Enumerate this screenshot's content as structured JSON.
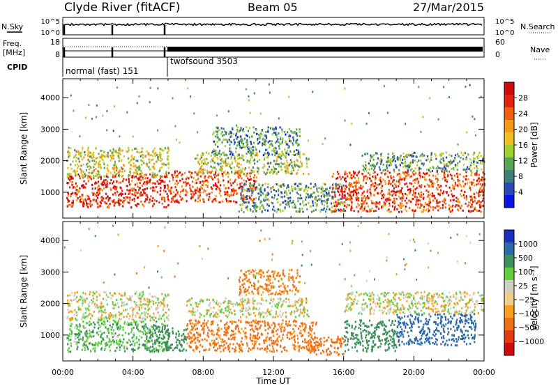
{
  "header": {
    "station": "Clyde River (fitACF)",
    "beam": "Beam 05",
    "date": "27/Mar/2015"
  },
  "strip_labels": {
    "nsky": "N.Sky",
    "nsearch": "N.Search",
    "freq": "Freq.",
    "freq_unit": "[MHz]",
    "nave": "Nave",
    "cpid": "CPID"
  },
  "strip_ticks": {
    "noise_left": [
      "10^5",
      "10^0"
    ],
    "noise_right": [
      "10^5",
      "10^0"
    ],
    "freq_left": [
      "18",
      "8"
    ],
    "nave_right": [
      "60",
      "0"
    ]
  },
  "cpid_modes": [
    {
      "label": "normal (fast) 151",
      "start_hour": 0,
      "end_hour": 6
    },
    {
      "label": "twofsound 3503",
      "start_hour": 6,
      "end_hour": 24
    }
  ],
  "x_axis": {
    "label": "Time UT",
    "ticks": [
      "00:00",
      "04:00",
      "08:00",
      "12:00",
      "16:00",
      "20:00",
      "00:00"
    ]
  },
  "y_axis": {
    "label": "Slant Range [km]",
    "ticks": [
      "1000",
      "2000",
      "3000",
      "4000"
    ]
  },
  "power_colorbar": {
    "label": "Power [dB]",
    "ticks": [
      "28",
      "24",
      "20",
      "16",
      "12",
      "8",
      "4"
    ]
  },
  "velocity_colorbar": {
    "label": "Velocity [m s⁻¹]",
    "ticks": [
      "1000",
      "500",
      "100",
      "25",
      "−25",
      "−100",
      "−500",
      "−1000"
    ]
  },
  "chart_data": [
    {
      "type": "heatmap",
      "title": "",
      "xlabel": "Time UT",
      "ylabel": "Slant Range [km]",
      "xlim": [
        0,
        24
      ],
      "ylim": [
        180,
        4600
      ],
      "colorbar": {
        "label": "Power [dB]",
        "range": [
          0,
          32
        ]
      },
      "regions": [
        {
          "t": [
            0.2,
            6.0
          ],
          "range": [
            550,
            1600
          ],
          "value": 28
        },
        {
          "t": [
            0.2,
            6.0
          ],
          "range": [
            1500,
            2450
          ],
          "value": 16
        },
        {
          "t": [
            6.0,
            11.0
          ],
          "range": [
            700,
            1700
          ],
          "value": 26
        },
        {
          "t": [
            7.5,
            14.0
          ],
          "range": [
            1600,
            2300
          ],
          "value": 14
        },
        {
          "t": [
            8.5,
            13.5
          ],
          "range": [
            2200,
            3100
          ],
          "value": 9
        },
        {
          "t": [
            10.0,
            16.0
          ],
          "range": [
            400,
            1300
          ],
          "value": 10
        },
        {
          "t": [
            15.3,
            24.0
          ],
          "range": [
            400,
            1700
          ],
          "value": 26
        },
        {
          "t": [
            17.0,
            24.0
          ],
          "range": [
            1700,
            2300
          ],
          "value": 11
        }
      ]
    },
    {
      "type": "heatmap",
      "title": "",
      "xlabel": "Time UT",
      "ylabel": "Slant Range [km]",
      "xlim": [
        0,
        24
      ],
      "ylim": [
        180,
        4600
      ],
      "colorbar": {
        "label": "Velocity [m s⁻¹]",
        "range": [
          -1000,
          1000
        ]
      },
      "regions": [
        {
          "t": [
            0.2,
            6.0
          ],
          "range": [
            500,
            1500
          ],
          "value": 80
        },
        {
          "t": [
            0.2,
            6.0
          ],
          "range": [
            1500,
            2400
          ],
          "value": 0
        },
        {
          "t": [
            4.5,
            7.0
          ],
          "range": [
            500,
            1300
          ],
          "value": 180
        },
        {
          "t": [
            7.0,
            14.5
          ],
          "range": [
            500,
            1500
          ],
          "value": -150
        },
        {
          "t": [
            7.0,
            14.0
          ],
          "range": [
            1600,
            2200
          ],
          "value": 0
        },
        {
          "t": [
            10.0,
            13.5
          ],
          "range": [
            2300,
            3100
          ],
          "value": -120
        },
        {
          "t": [
            14.0,
            16.0
          ],
          "range": [
            400,
            1000
          ],
          "value": -200
        },
        {
          "t": [
            16.0,
            19.0
          ],
          "range": [
            500,
            1500
          ],
          "value": 300
        },
        {
          "t": [
            19.0,
            23.5
          ],
          "range": [
            700,
            1700
          ],
          "value": 700
        },
        {
          "t": [
            16.0,
            24.0
          ],
          "range": [
            1700,
            2400
          ],
          "value": 0
        }
      ]
    }
  ]
}
